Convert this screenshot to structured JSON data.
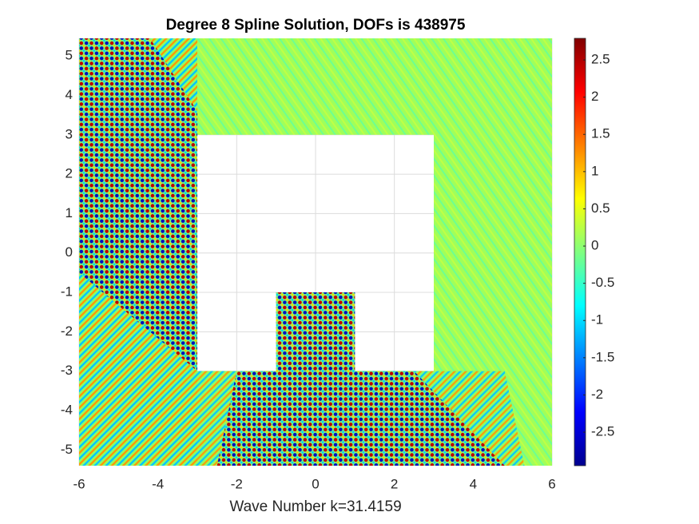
{
  "chart_data": {
    "type": "heatmap",
    "title": "Degree 8 Spline Solution, DOFs is 438975",
    "xlabel": "Wave Number k=31.4159",
    "xlim": [
      -6,
      6
    ],
    "xticks": [
      -6,
      -4,
      -2,
      0,
      2,
      4,
      6
    ],
    "ylim": [
      -5.4,
      5.45
    ],
    "yticks": [
      -5,
      -4,
      -3,
      -2,
      -1,
      0,
      1,
      2,
      3,
      4,
      5
    ],
    "grid": true,
    "colormap": "jet",
    "clim": [
      -2.95,
      2.79
    ],
    "cticks": [
      -2.5,
      -2,
      -1.5,
      -1,
      -0.5,
      0,
      0.5,
      1,
      1.5,
      2,
      2.5
    ]
  }
}
